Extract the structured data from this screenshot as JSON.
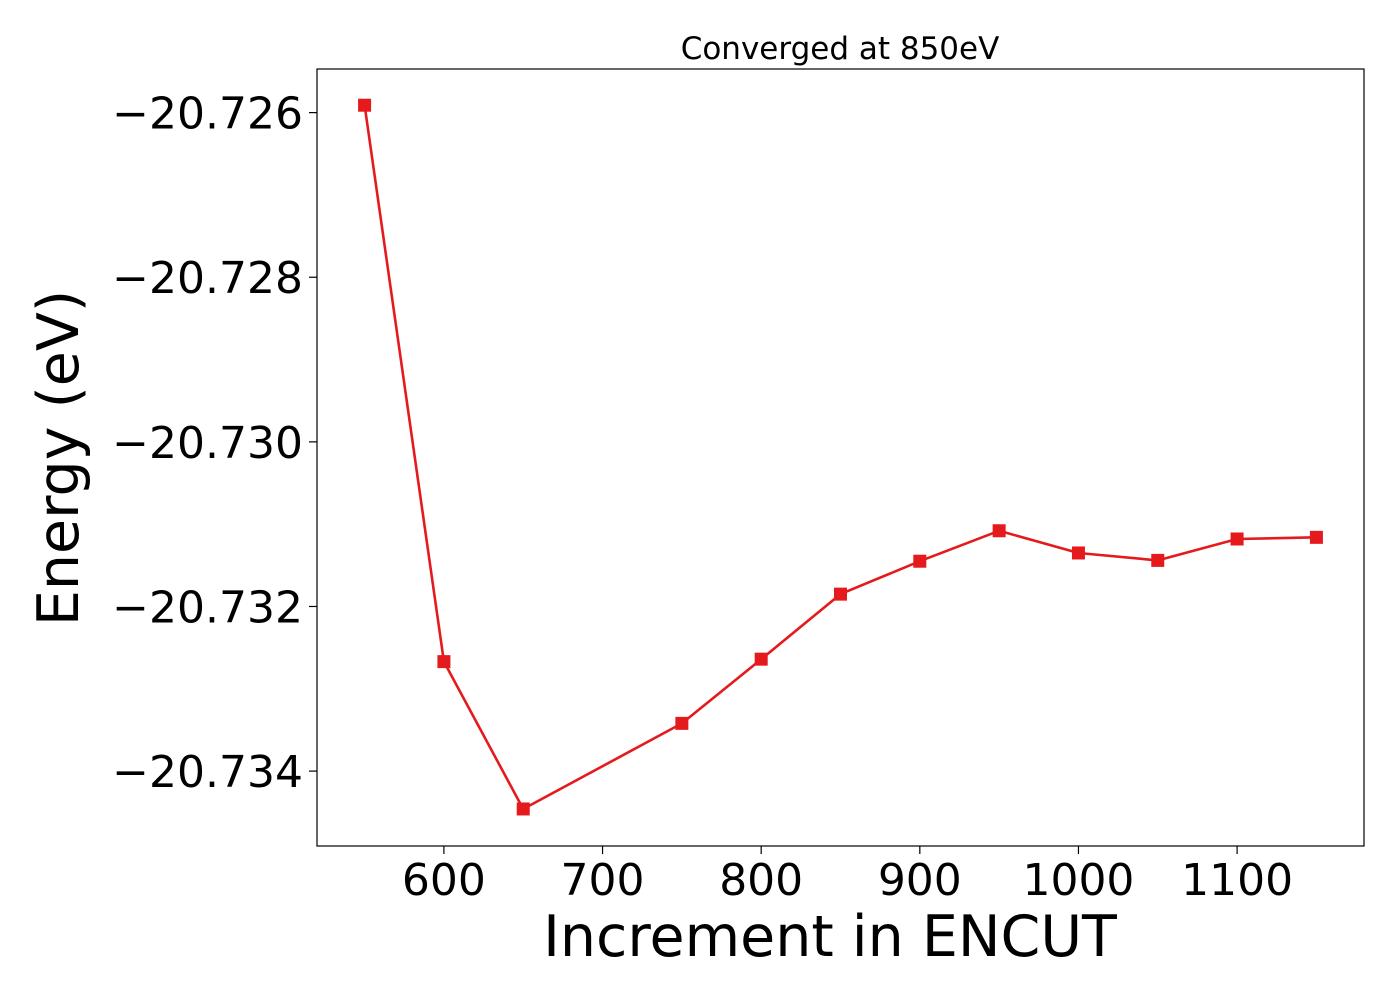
{
  "chart_data": {
    "type": "line",
    "title": "Converged at 850eV",
    "xlabel": "Increment in ENCUT",
    "ylabel": "Energy (eV)",
    "x": [
      550,
      600,
      650,
      750,
      800,
      850,
      900,
      950,
      1000,
      1050,
      1100,
      1150
    ],
    "series": [
      {
        "values": [
          -20.72591,
          -20.73267,
          -20.73446,
          -20.73342,
          -20.73264,
          -20.73185,
          -20.73145,
          -20.73108,
          -20.73135,
          -20.73144,
          -20.73118,
          -20.73116
        ],
        "color": "#e41a1c",
        "marker": "square"
      }
    ],
    "xlim": [
      520,
      1180
    ],
    "ylim": [
      -20.73491,
      -20.72547
    ],
    "xticks": [
      600,
      700,
      800,
      900,
      1000,
      1100
    ],
    "xtick_labels": [
      "600",
      "700",
      "800",
      "900",
      "1000",
      "1100"
    ],
    "yticks": [
      -20.726,
      -20.728,
      -20.73,
      -20.732,
      -20.734
    ],
    "ytick_labels": [
      "−20.726",
      "−20.728",
      "−20.730",
      "−20.732",
      "−20.734"
    ],
    "grid": false,
    "legend": "none"
  }
}
